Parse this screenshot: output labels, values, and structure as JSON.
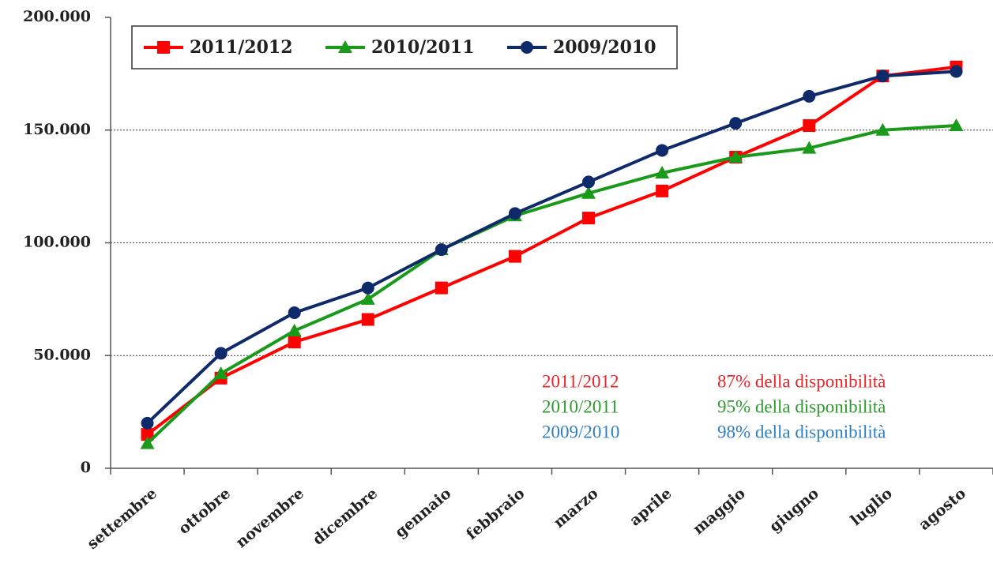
{
  "chart_data": {
    "type": "line",
    "categories": [
      "settembre",
      "ottobre",
      "novembre",
      "dicembre",
      "gennaio",
      "febbraio",
      "marzo",
      "aprile",
      "maggio",
      "giugno",
      "luglio",
      "agosto"
    ],
    "series": [
      {
        "name": "2011/2012",
        "color": "#ff0000",
        "marker": "square",
        "values": [
          15000,
          40000,
          56000,
          66000,
          80000,
          94000,
          111000,
          123000,
          138000,
          152000,
          174000,
          178000
        ]
      },
      {
        "name": "2010/2011",
        "color": "#1a9a1a",
        "marker": "triangle",
        "values": [
          11000,
          42000,
          61000,
          75000,
          97000,
          112000,
          122000,
          131000,
          138000,
          142000,
          150000,
          152000
        ]
      },
      {
        "name": "2009/2010",
        "color": "#0f2a6b",
        "marker": "circle",
        "values": [
          20000,
          51000,
          69000,
          80000,
          97000,
          113000,
          127000,
          141000,
          153000,
          165000,
          174000,
          176000
        ]
      }
    ],
    "ylim": [
      0,
      200000
    ],
    "yticks": [
      0,
      {
        "value": 50000,
        "label": "50.000"
      },
      {
        "value": 100000,
        "label": "100.000"
      },
      {
        "value": 150000,
        "label": "150.000"
      },
      {
        "value": 200000,
        "label": "200.000"
      }
    ],
    "grid": true,
    "legend": "top-left",
    "annotations": [
      {
        "labels": [
          "2011/2012",
          "87% della disponibilità"
        ],
        "color": "#e8262a"
      },
      {
        "labels": [
          "2010/2011",
          "95% della disponibilità"
        ],
        "color": "#2e9a2e"
      },
      {
        "labels": [
          "2009/2010",
          "98% della disponibilità"
        ],
        "color": "#2f7fc4"
      }
    ]
  }
}
